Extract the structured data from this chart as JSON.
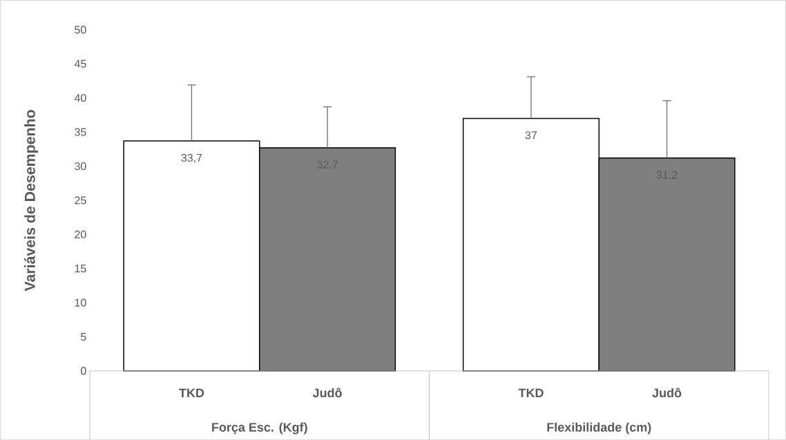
{
  "chart_data": {
    "type": "bar",
    "ylabel": "Variáveis de Desempenho",
    "categories": [
      "Força Esc. (Kgf)",
      "Flexibilidade (cm)"
    ],
    "series": [
      {
        "name": "TKD",
        "color": "#ffffff",
        "values": [
          33.7,
          37
        ],
        "errors": [
          [
            33.7,
            41.9
          ],
          [
            37,
            43.1
          ]
        ],
        "value_labels": [
          "33,7",
          "37"
        ]
      },
      {
        "name": "Judô",
        "color": "#7f7f7f",
        "values": [
          32.7,
          31.2
        ],
        "errors": [
          [
            32.7,
            38.7
          ],
          [
            31.2,
            39.6
          ]
        ],
        "value_labels": [
          "32,7",
          "31,2"
        ]
      }
    ],
    "ylim": [
      0,
      50
    ],
    "yticks": [
      0,
      5,
      10,
      15,
      20,
      25,
      30,
      35,
      40,
      45,
      50
    ]
  }
}
